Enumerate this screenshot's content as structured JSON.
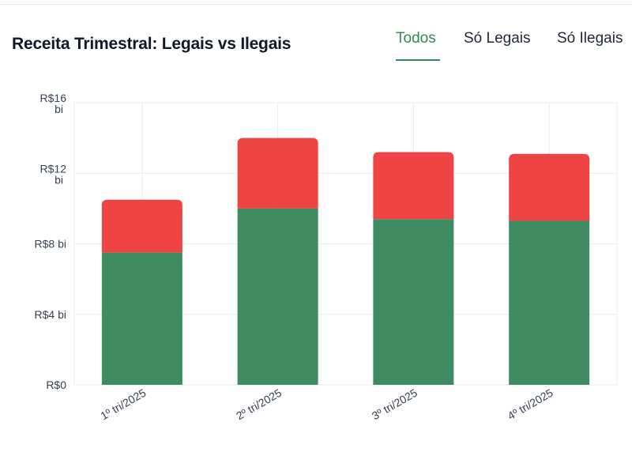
{
  "header": {
    "title": "Receita Trimestral: Legais vs Ilegais",
    "tabs": [
      {
        "label": "Todos",
        "active": true
      },
      {
        "label": "Só Legais",
        "active": false
      },
      {
        "label": "Só Ilegais",
        "active": false
      }
    ]
  },
  "colors": {
    "legal": "#3f8c63",
    "illegal": "#ef4444",
    "accent": "#2e8b57",
    "grid": "#ebebeb"
  },
  "chart_data": {
    "type": "bar",
    "stacked": true,
    "categories": [
      "1º tri/2025",
      "2º tri/2025",
      "3º tri/2025",
      "4º tri/2025"
    ],
    "series": [
      {
        "key": "legal",
        "values": [
          7.5,
          10.0,
          9.4,
          9.3
        ]
      },
      {
        "key": "illegal",
        "values": [
          3.0,
          4.0,
          3.8,
          3.8
        ]
      }
    ],
    "ylim": [
      0,
      16
    ],
    "yticks": [
      {
        "value": 0,
        "lines": [
          "R$0"
        ]
      },
      {
        "value": 4,
        "lines": [
          "R$4 bi"
        ]
      },
      {
        "value": 8,
        "lines": [
          "R$8 bi"
        ]
      },
      {
        "value": 12,
        "lines": [
          "R$12",
          "bi"
        ]
      },
      {
        "value": 16,
        "lines": [
          "R$16",
          "bi"
        ]
      }
    ],
    "grid": true,
    "title": "",
    "xlabel": "",
    "ylabel": ""
  }
}
